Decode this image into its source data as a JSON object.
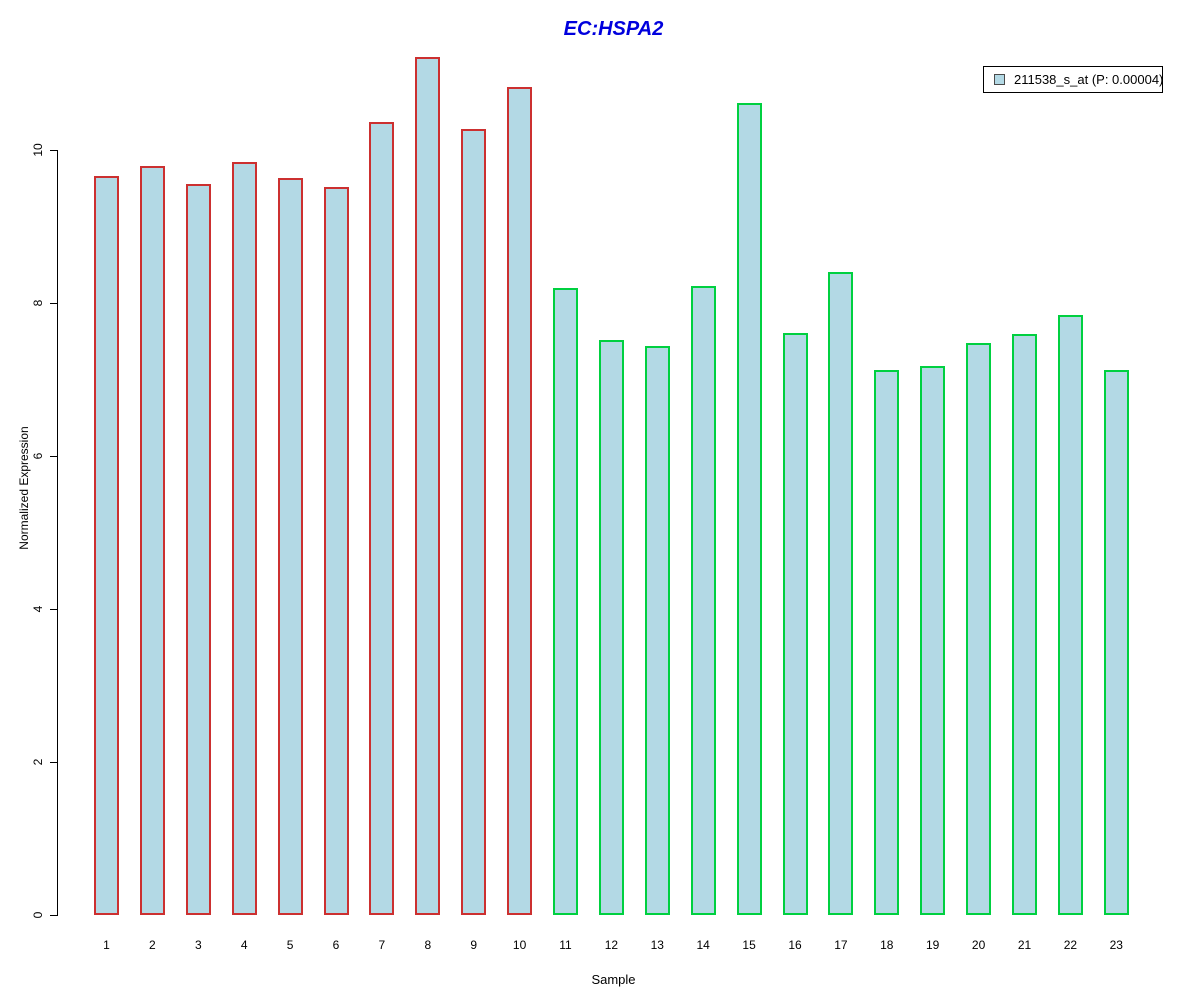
{
  "title": "EC:HSPA2",
  "legend": {
    "label": "211538_s_at (P: 0.00004)"
  },
  "colors": {
    "title": "#0000DD",
    "bar_fill": "#B3D9E5",
    "bar_border_group1": "#CC3030",
    "bar_border_group2": "#00D040",
    "legend_swatch_fill": "#B3D9E5",
    "legend_swatch_border": "#4A4A4A",
    "axis": "#000000"
  },
  "chart_data": {
    "type": "bar",
    "title": "EC:HSPA2",
    "xlabel": "Sample",
    "ylabel": "Normalized Expression",
    "ylim": [
      0,
      11.3
    ],
    "y_ticks": [
      0,
      2,
      4,
      6,
      8,
      10
    ],
    "grid": false,
    "legend_position": "top-right",
    "legend_entries": [
      "211538_s_at (P: 0.00004)"
    ],
    "categories": [
      "1",
      "2",
      "3",
      "4",
      "5",
      "6",
      "7",
      "8",
      "9",
      "10",
      "11",
      "12",
      "13",
      "14",
      "15",
      "16",
      "17",
      "18",
      "19",
      "20",
      "21",
      "22",
      "23"
    ],
    "series": [
      {
        "name": "211538_s_at (P: 0.00004)",
        "values": [
          9.66,
          9.79,
          9.55,
          9.84,
          9.63,
          9.51,
          10.37,
          11.21,
          10.28,
          10.82,
          8.19,
          7.51,
          7.44,
          8.22,
          10.61,
          7.61,
          8.41,
          7.12,
          7.17,
          7.48,
          7.6,
          7.84,
          7.12
        ]
      }
    ],
    "bar_groups": [
      {
        "label": "samples 1-10",
        "start_index": 0,
        "end_index": 9,
        "border_color_key": "bar_border_group1"
      },
      {
        "label": "samples 11-23",
        "start_index": 10,
        "end_index": 22,
        "border_color_key": "bar_border_group2"
      }
    ]
  }
}
